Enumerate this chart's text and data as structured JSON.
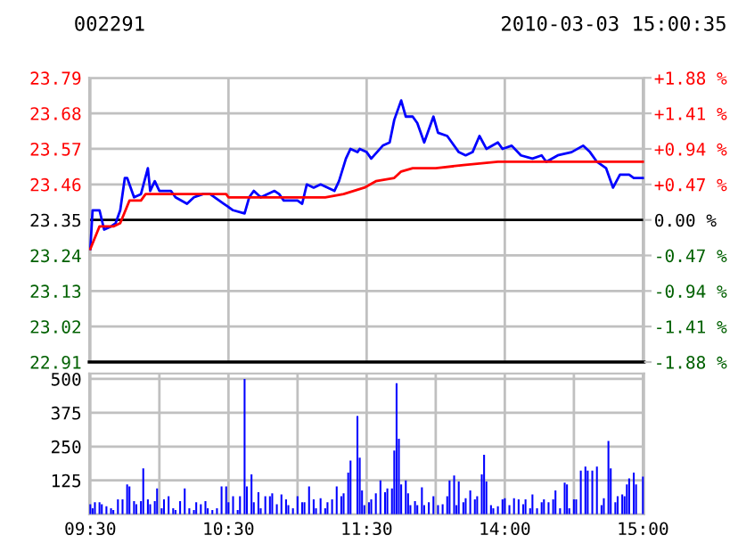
{
  "chart_data": [
    {
      "type": "line",
      "title": "002291",
      "subtitle": "2010-03-03 15:00:35",
      "categories": [
        null,
        null,
        null,
        null,
        null,
        null,
        null,
        null,
        null,
        null,
        null,
        null,
        null,
        null,
        null,
        null,
        null,
        null,
        null,
        null,
        null,
        null,
        null,
        null,
        null,
        null,
        null,
        null,
        null,
        null,
        null,
        null,
        null,
        null,
        null,
        null,
        null,
        null,
        null,
        null,
        null,
        null,
        null,
        null,
        null,
        null,
        null,
        null,
        null,
        null,
        null,
        null,
        null,
        null,
        null,
        null,
        null,
        null,
        null,
        null,
        null,
        null,
        null,
        null,
        null,
        null,
        null,
        null,
        null,
        null,
        null,
        null,
        null,
        null,
        null,
        null,
        null,
        null,
        null,
        null,
        null,
        null,
        null,
        null,
        null,
        null,
        null,
        null,
        null,
        null,
        null,
        null,
        null,
        null,
        null,
        null,
        null,
        null,
        null,
        null,
        null,
        null,
        null,
        null,
        null,
        null,
        null,
        null,
        null,
        null,
        null,
        null,
        null,
        null,
        null,
        null,
        null,
        null,
        null,
        null,
        null,
        null,
        null,
        null,
        null,
        null,
        null,
        null,
        null,
        null,
        null,
        null,
        null,
        null,
        null,
        null,
        null,
        null,
        null,
        null,
        null,
        null,
        null,
        null,
        null,
        null,
        null,
        null,
        null,
        null,
        null,
        null,
        null,
        null,
        null,
        null,
        null,
        null,
        null,
        null,
        null,
        null,
        null,
        null,
        null,
        null,
        null,
        null,
        null,
        null,
        null,
        null,
        null,
        null,
        null,
        null,
        null,
        null,
        null,
        null,
        null,
        null,
        null,
        null,
        null,
        null,
        null,
        null,
        null,
        null,
        null,
        null,
        null,
        null,
        null,
        null,
        null,
        null,
        null,
        null,
        null,
        null,
        null,
        null,
        null,
        null,
        null,
        null,
        null,
        null,
        null,
        null,
        null,
        null,
        null,
        null,
        null,
        null,
        null,
        null,
        null,
        null,
        null,
        null,
        null,
        null,
        null,
        null,
        null,
        null,
        null,
        null,
        null,
        null,
        null,
        null,
        null,
        null,
        null,
        null,
        null
      ],
      "ylim": [
        22.91,
        23.79
      ],
      "yticks": [
        22.91,
        23.02,
        23.13,
        23.24,
        23.35,
        23.46,
        23.57,
        23.68,
        23.79
      ],
      "y2lim": [
        -1.88,
        1.88
      ],
      "y2ticks": [
        {
          "value": -1.88,
          "label": "-1.88 %"
        },
        {
          "value": -1.41,
          "label": "-1.41 %"
        },
        {
          "value": -0.94,
          "label": "-0.94 %"
        },
        {
          "value": -0.47,
          "label": "-0.47 %"
        },
        {
          "value": 0,
          "label": "0.00 %"
        },
        {
          "value": 0.47,
          "label": "+0.47 %"
        },
        {
          "value": 0.94,
          "label": "+0.94 %"
        },
        {
          "value": 1.41,
          "label": "+1.41 %"
        },
        {
          "value": 1.88,
          "label": "+1.88 %"
        }
      ],
      "ref_lines": [
        {
          "axis": "y",
          "value": 23.35,
          "color": "#000000"
        }
      ],
      "grid": true,
      "legend": false,
      "marker": "none",
      "line_style": "solid",
      "series": [
        {
          "color": "#0000ff",
          "values": [
            23.26,
            23.38,
            null,
            null,
            23.38,
            null,
            23.32,
            null,
            null,
            23.33,
            null,
            23.34,
            null,
            23.38,
            null,
            23.48,
            23.48,
            null,
            null,
            23.42,
            null,
            null,
            23.43,
            null,
            null,
            23.51,
            23.44,
            null,
            23.47,
            null,
            23.44,
            null,
            null,
            null,
            null,
            23.44,
            null,
            23.42,
            null,
            null,
            null,
            null,
            23.4,
            null,
            null,
            23.42,
            null,
            null,
            null,
            23.43,
            null,
            null,
            23.43,
            null,
            null,
            null,
            null,
            null,
            23.4,
            null,
            null,
            null,
            23.38,
            null,
            null,
            null,
            null,
            23.37,
            null,
            23.42,
            null,
            23.44,
            null,
            null,
            23.42,
            null,
            null,
            null,
            null,
            null,
            23.44,
            null,
            23.43,
            null,
            23.41,
            null,
            null,
            null,
            null,
            null,
            23.41,
            null,
            23.4,
            null,
            23.46,
            null,
            null,
            23.45,
            null,
            null,
            23.46,
            null,
            null,
            null,
            null,
            null,
            23.44,
            null,
            23.47,
            null,
            null,
            23.54,
            null,
            23.57,
            null,
            null,
            23.56,
            23.57,
            null,
            null,
            23.56,
            null,
            23.54,
            null,
            null,
            null,
            null,
            23.58,
            null,
            null,
            23.59,
            null,
            23.66,
            null,
            null,
            23.72,
            null,
            23.67,
            null,
            null,
            23.67,
            null,
            23.65,
            null,
            null,
            23.59,
            null,
            23.63,
            null,
            23.67,
            null,
            23.62,
            null,
            null,
            null,
            23.61,
            null,
            23.59,
            null,
            null,
            23.56,
            null,
            null,
            23.55,
            null,
            null,
            23.56,
            null,
            null,
            23.61,
            null,
            null,
            23.57,
            null,
            null,
            null,
            null,
            23.59,
            null,
            23.57,
            null,
            null,
            null,
            23.58,
            null,
            null,
            null,
            23.55,
            null,
            null,
            null,
            null,
            23.54,
            null,
            null,
            null,
            23.55,
            null,
            23.53,
            null,
            null,
            null,
            null,
            23.55,
            null,
            null,
            null,
            null,
            null,
            23.56,
            null,
            null,
            null,
            null,
            23.58,
            null,
            null,
            23.56,
            null,
            null,
            23.53,
            null,
            null,
            null,
            23.51,
            null,
            null,
            23.45,
            null,
            null,
            23.49,
            null,
            null,
            null,
            23.49,
            null,
            23.48,
            null,
            null,
            null,
            23.48
          ]
        },
        {
          "color": "#ff0000",
          "values": [
            23.26,
            null,
            null,
            null,
            23.33,
            null,
            null,
            null,
            null,
            null,
            23.33,
            null,
            null,
            23.34,
            null,
            null,
            null,
            23.41,
            null,
            null,
            null,
            null,
            23.41,
            null,
            23.43,
            null,
            null,
            null,
            null,
            null,
            null,
            null,
            null,
            null,
            null,
            null,
            null,
            23.43,
            null,
            null,
            null,
            23.43,
            null,
            null,
            null,
            null,
            null,
            null,
            null,
            null,
            null,
            null,
            null,
            null,
            null,
            null,
            null,
            null,
            null,
            23.43,
            23.42,
            null,
            null,
            null,
            null,
            null,
            null,
            null,
            null,
            null,
            null,
            null,
            null,
            null,
            null,
            null,
            null,
            null,
            null,
            null,
            null,
            null,
            23.42,
            null,
            null,
            null,
            null,
            null,
            null,
            null,
            null,
            null,
            null,
            null,
            null,
            null,
            null,
            null,
            null,
            null,
            null,
            null,
            23.42,
            null,
            null,
            null,
            null,
            null,
            null,
            null,
            23.43,
            null,
            null,
            null,
            null,
            null,
            null,
            null,
            null,
            23.45,
            null,
            null,
            null,
            null,
            23.47,
            null,
            null,
            null,
            null,
            null,
            null,
            null,
            23.48,
            null,
            null,
            23.5,
            null,
            null,
            null,
            null,
            23.51,
            null,
            null,
            null,
            null,
            null,
            null,
            null,
            null,
            null,
            23.51,
            null,
            null,
            null,
            null,
            null,
            null,
            null,
            null,
            null,
            null,
            null,
            23.52,
            null,
            null,
            null,
            null,
            null,
            null,
            null,
            null,
            null,
            null,
            null,
            null,
            null,
            null,
            23.53,
            null,
            null,
            null,
            null,
            null,
            null,
            null,
            null,
            null,
            null,
            null,
            null,
            null,
            null,
            null,
            null,
            null,
            null,
            null,
            null,
            null,
            null,
            null,
            null,
            null,
            null,
            null,
            null,
            null,
            null,
            null,
            null,
            null,
            null,
            null,
            null,
            null,
            null,
            null,
            23.53,
            null,
            null,
            null,
            null,
            null,
            null,
            null,
            null,
            null,
            null,
            null,
            null,
            null,
            null,
            null,
            null,
            null,
            null,
            null,
            null,
            null,
            null,
            23.53
          ]
        }
      ]
    },
    {
      "type": "bar",
      "categories": [
        "09:30",
        null,
        null,
        null,
        null,
        null,
        null,
        null,
        null,
        null,
        null,
        null,
        null,
        null,
        null,
        null,
        null,
        null,
        null,
        null,
        null,
        null,
        null,
        null,
        null,
        null,
        null,
        null,
        null,
        null,
        null,
        null,
        null,
        null,
        null,
        null,
        null,
        null,
        null,
        null,
        null,
        null,
        null,
        null,
        null,
        null,
        null,
        null,
        null,
        null,
        null,
        null,
        null,
        null,
        null,
        null,
        null,
        null,
        null,
        null,
        "10:30",
        null,
        null,
        null,
        null,
        null,
        null,
        null,
        null,
        null,
        null,
        null,
        null,
        null,
        null,
        null,
        null,
        null,
        null,
        null,
        null,
        null,
        null,
        null,
        null,
        null,
        null,
        null,
        null,
        null,
        null,
        null,
        null,
        null,
        null,
        null,
        null,
        null,
        null,
        null,
        null,
        null,
        null,
        null,
        null,
        null,
        null,
        null,
        null,
        null,
        null,
        null,
        null,
        null,
        null,
        null,
        null,
        null,
        null,
        null,
        "11:30",
        null,
        null,
        null,
        null,
        null,
        null,
        null,
        null,
        null,
        null,
        null,
        null,
        null,
        null,
        null,
        null,
        null,
        null,
        null,
        null,
        null,
        null,
        null,
        null,
        null,
        null,
        null,
        null,
        null,
        null,
        null,
        null,
        null,
        null,
        null,
        null,
        null,
        null,
        null,
        null,
        null,
        null,
        null,
        null,
        null,
        null,
        null,
        null,
        null,
        null,
        null,
        null,
        null,
        null,
        null,
        null,
        null,
        null,
        null,
        "14:00",
        null,
        null,
        null,
        null,
        null,
        null,
        null,
        null,
        null,
        null,
        null,
        null,
        null,
        null,
        null,
        null,
        null,
        null,
        null,
        null,
        null,
        null,
        null,
        null,
        null,
        null,
        null,
        null,
        null,
        null,
        null,
        null,
        null,
        null,
        null,
        null,
        null,
        null,
        null,
        null,
        null,
        null,
        null,
        null,
        null,
        null,
        null,
        null,
        null,
        null,
        null,
        null,
        null,
        null,
        null,
        null,
        null,
        null,
        null,
        "15:00"
      ],
      "ylim": [
        0,
        520
      ],
      "yticks": [
        125,
        250,
        375,
        500
      ],
      "grid": true,
      "legend": false,
      "series": [
        {
          "color": "#0000ff",
          "values": [
            37,
            22,
            44,
            null,
            44,
            37,
            null,
            29,
            null,
            22,
            15,
            null,
            55,
            null,
            55,
            null,
            110,
            103,
            null,
            48,
            37,
            null,
            48,
            169,
            null,
            55,
            37,
            null,
            48,
            95,
            null,
            22,
            55,
            null,
            66,
            null,
            22,
            15,
            null,
            48,
            null,
            95,
            null,
            22,
            null,
            15,
            44,
            null,
            37,
            null,
            48,
            22,
            null,
            15,
            null,
            22,
            null,
            103,
            null,
            103,
            44,
            null,
            66,
            null,
            15,
            66,
            null,
            500,
            103,
            null,
            147,
            44,
            null,
            81,
            22,
            null,
            66,
            null,
            66,
            77,
            null,
            37,
            null,
            73,
            null,
            55,
            33,
            null,
            22,
            null,
            66,
            null,
            44,
            44,
            null,
            103,
            null,
            55,
            22,
            null,
            59,
            null,
            22,
            44,
            null,
            55,
            null,
            103,
            null,
            66,
            77,
            null,
            154,
            198,
            null,
            null,
            363,
            209,
            88,
            33,
            null,
            44,
            55,
            null,
            77,
            null,
            125,
            null,
            81,
            95,
            null,
            95,
            235,
            484,
            279,
            110,
            null,
            125,
            77,
            33,
            null,
            48,
            33,
            null,
            99,
            33,
            null,
            44,
            null,
            66,
            null,
            33,
            null,
            37,
            null,
            66,
            125,
            null,
            143,
            33,
            121,
            null,
            44,
            59,
            null,
            88,
            null,
            55,
            66,
            null,
            147,
            220,
            121,
            null,
            33,
            22,
            null,
            29,
            null,
            55,
            59,
            null,
            33,
            null,
            59,
            null,
            55,
            null,
            37,
            55,
            null,
            22,
            73,
            null,
            22,
            null,
            44,
            55,
            null,
            44,
            null,
            55,
            88,
            null,
            22,
            null,
            117,
            110,
            22,
            null,
            55,
            55,
            null,
            161,
            null,
            176,
            161,
            null,
            161,
            null,
            176,
            null,
            33,
            59,
            null,
            271,
            169,
            null,
            44,
            66,
            null,
            73,
            66,
            110,
            132,
            null,
            154,
            110,
            null,
            null,
            139
          ]
        }
      ]
    }
  ]
}
